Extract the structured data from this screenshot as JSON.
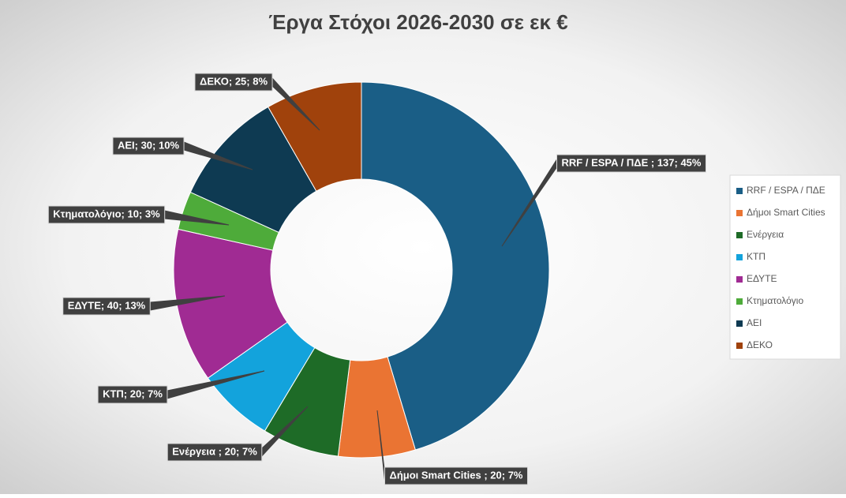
{
  "chart_data": {
    "type": "donut",
    "title": "Έργα Στόχοι 2026-2030 σε εκ €",
    "categories": [
      "RRF / ESPA / ΠΔΕ",
      "Δήμοι Smart Cities",
      "Ενέργεια",
      "ΚΤΠ",
      "ΕΔΥΤΕ",
      "Κτηματολόγιο",
      "ΑΕΙ",
      "ΔΕΚΟ"
    ],
    "values": [
      137,
      20,
      20,
      20,
      40,
      10,
      30,
      25
    ],
    "value_labels": [
      "RRF / ESPA / ΠΔΕ ; 137; 45%",
      "Δήμοι Smart Cities ; 20; 7%",
      "Ενέργεια ; 20; 7%",
      "ΚΤΠ; 20; 7%",
      "ΕΔΥΤΕ; 40; 13%",
      "Κτηματολόγιο; 10; 3%",
      "ΑΕΙ; 30; 10%",
      "ΔΕΚΟ; 25; 8%"
    ],
    "colors": [
      "#1a5e86",
      "#ea7433",
      "#1e6b27",
      "#13a3dc",
      "#a02b93",
      "#4eab3a",
      "#0e3a52",
      "#a0420c"
    ],
    "legend": "right"
  }
}
